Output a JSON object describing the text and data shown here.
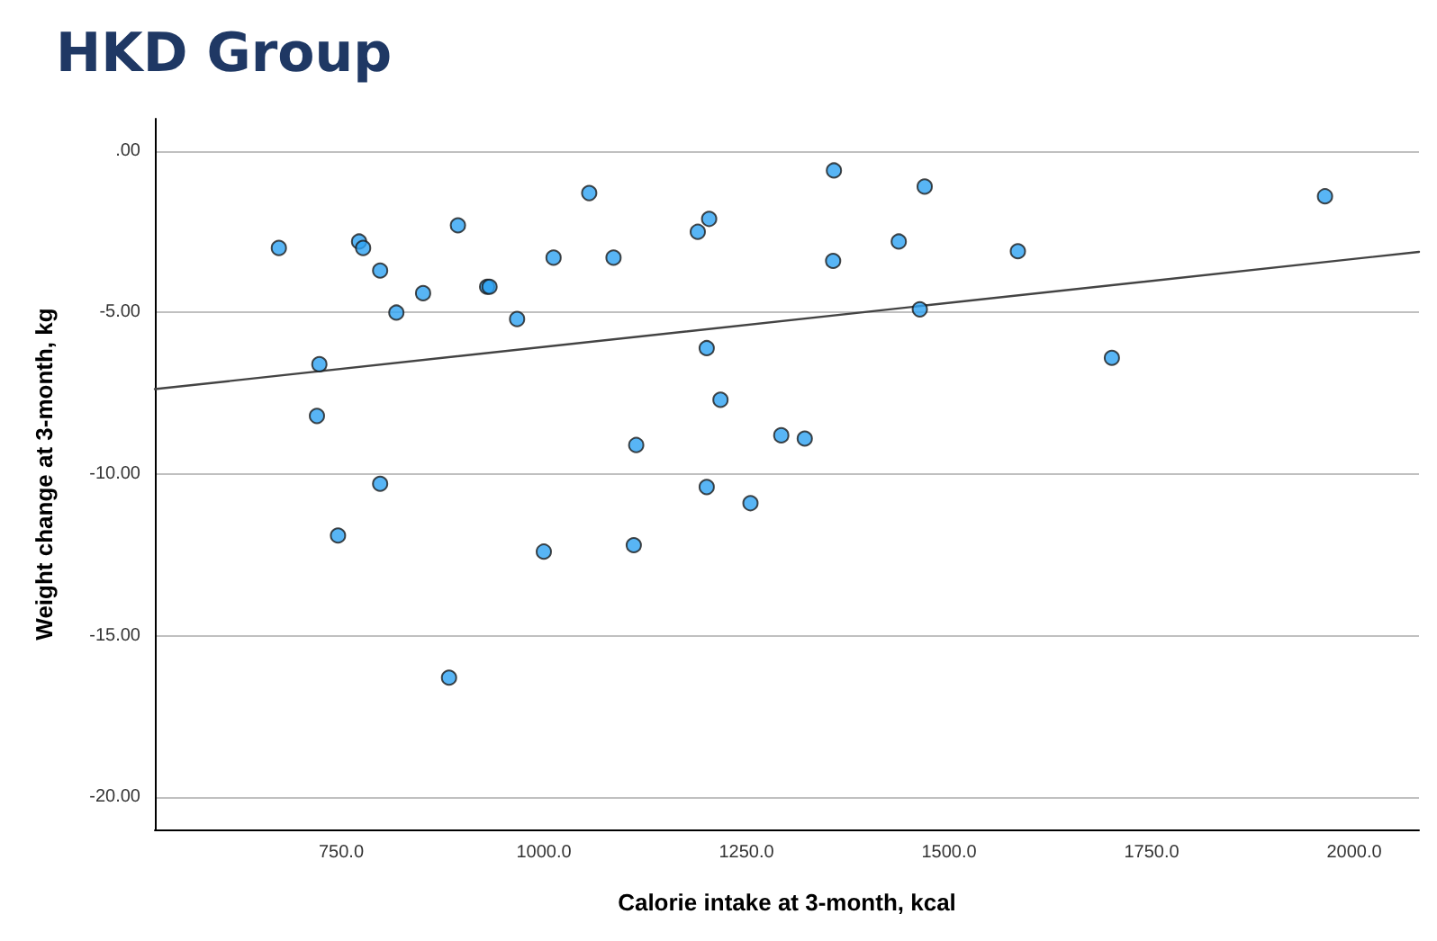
{
  "chart_data": {
    "type": "scatter",
    "title": "HKD Group",
    "xlabel": "Calorie intake at 3-month, kcal",
    "ylabel": "Weight change at 3-month, kg",
    "xlim": [
      520,
      2080
    ],
    "ylim": [
      -21,
      1
    ],
    "xticks": [
      {
        "value": 750,
        "label": "750.0"
      },
      {
        "value": 1000,
        "label": "1000.0"
      },
      {
        "value": 1250,
        "label": "1250.0"
      },
      {
        "value": 1500,
        "label": "1500.0"
      },
      {
        "value": 1750,
        "label": "1750.0"
      },
      {
        "value": 2000,
        "label": "2000.0"
      }
    ],
    "yticks": [
      {
        "value": 0,
        "label": ".00"
      },
      {
        "value": -5,
        "label": "-5.00"
      },
      {
        "value": -10,
        "label": "-10.00"
      },
      {
        "value": -15,
        "label": "-15.00"
      },
      {
        "value": -20,
        "label": "-20.00"
      }
    ],
    "grid": "y",
    "marker": "circle",
    "series": [
      {
        "color": "#2ea3f2",
        "x": [
          673,
          772,
          777,
          798,
          818,
          851,
          894,
          930,
          933,
          967,
          1012,
          1056,
          1086,
          1190,
          1204,
          1201,
          1218,
          1293,
          1114,
          723,
          720,
          798,
          1201,
          1255,
          746,
          1000,
          1111,
          883,
          1358,
          1470,
          1964,
          1357,
          1438,
          1585,
          1464,
          1701,
          1322
        ],
        "values": [
          -3.0,
          -2.8,
          -3.0,
          -3.7,
          -5.0,
          -4.4,
          -2.3,
          -4.2,
          -4.2,
          -5.2,
          -3.3,
          -1.3,
          -3.3,
          -2.5,
          -2.1,
          -6.1,
          -7.7,
          -8.8,
          -9.1,
          -6.6,
          -8.2,
          -10.3,
          -10.4,
          -10.9,
          -11.9,
          -12.4,
          -12.2,
          -16.3,
          -0.6,
          -1.1,
          -1.4,
          -3.4,
          -2.8,
          -3.1,
          -4.9,
          -6.4,
          -8.9
        ]
      },
      {
        "type": "line",
        "color": "#444444",
        "marker": "none",
        "line_style": "solid",
        "x": [
          520,
          2080
        ],
        "values": [
          -7.37,
          -3.12
        ]
      }
    ]
  }
}
